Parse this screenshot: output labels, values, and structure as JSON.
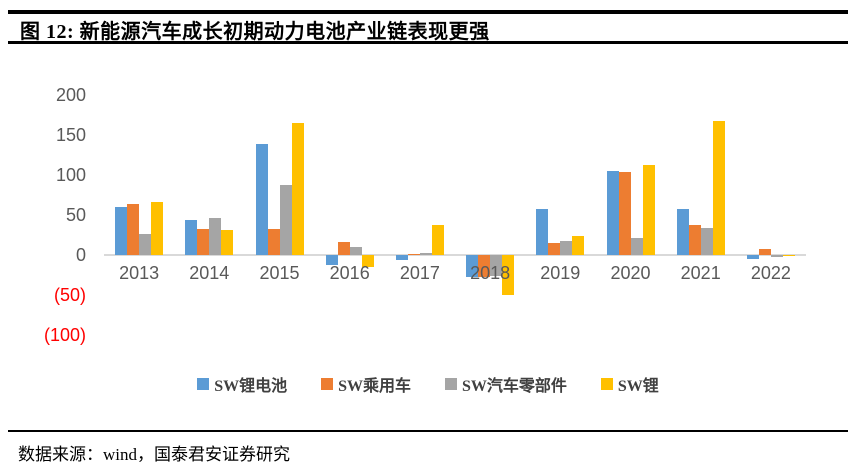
{
  "header": {
    "title": "图 12:  新能源汽车成长初期动力电池产业链表现更强"
  },
  "chart_data": {
    "type": "bar",
    "title": "新能源汽车成长初期动力电池产业链表现更强",
    "categories": [
      "2013",
      "2014",
      "2015",
      "2016",
      "2017",
      "2018",
      "2019",
      "2020",
      "2021",
      "2022"
    ],
    "series": [
      {
        "name": "SW锂电池",
        "color": "#5B9BD5",
        "values": [
          60,
          44,
          139,
          -13,
          -6,
          -27,
          57,
          105,
          58,
          -5
        ]
      },
      {
        "name": "SW乘用车",
        "color": "#ED7D31",
        "values": [
          64,
          33,
          33,
          16,
          1,
          -27,
          15,
          104,
          37,
          7
        ]
      },
      {
        "name": "SW汽车零部件",
        "color": "#A5A5A5",
        "values": [
          26,
          46,
          88,
          10,
          3,
          -26,
          17,
          21,
          34,
          -3
        ]
      },
      {
        "name": "SW锂",
        "color": "#FFC000",
        "values": [
          66,
          31,
          165,
          -15,
          37,
          -50,
          24,
          113,
          167,
          -1
        ]
      }
    ],
    "xlabel": "",
    "ylabel": "",
    "ylim": [
      -100,
      200
    ],
    "y_axis": {
      "ticks": [
        200,
        150,
        100,
        50,
        0,
        -50,
        -100
      ],
      "negative_format": "parentheses",
      "tick_color": "#595959",
      "negative_tick_color": "#FF0000"
    },
    "grid": false,
    "baseline_color": "#D9D9D9",
    "legend_position": "bottom"
  },
  "footer": {
    "source": "数据来源：wind，国泰君安证券研究"
  }
}
